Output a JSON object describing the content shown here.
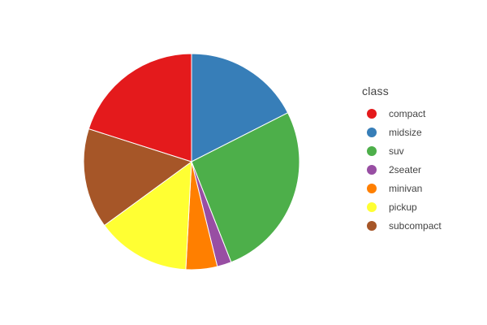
{
  "chart_data": {
    "type": "pie",
    "title": "",
    "legend_title": "class",
    "legend_position": "right",
    "direction": "clockwise",
    "sort": false,
    "categories": [
      "midsize",
      "suv",
      "2seater",
      "minivan",
      "pickup",
      "subcompact",
      "compact"
    ],
    "values": [
      41,
      62,
      5,
      11,
      33,
      35,
      47
    ],
    "colors": [
      "#377eb8",
      "#4daf4a",
      "#984ea3",
      "#ff7f00",
      "#ffff33",
      "#a65628",
      "#e41a1c"
    ]
  },
  "legend": {
    "title": "class",
    "items": [
      {
        "label": "compact",
        "color": "#e41a1c"
      },
      {
        "label": "midsize",
        "color": "#377eb8"
      },
      {
        "label": "suv",
        "color": "#4daf4a"
      },
      {
        "label": "2seater",
        "color": "#984ea3"
      },
      {
        "label": "minivan",
        "color": "#ff7f00"
      },
      {
        "label": "pickup",
        "color": "#ffff33"
      },
      {
        "label": "subcompact",
        "color": "#a65628"
      }
    ]
  }
}
